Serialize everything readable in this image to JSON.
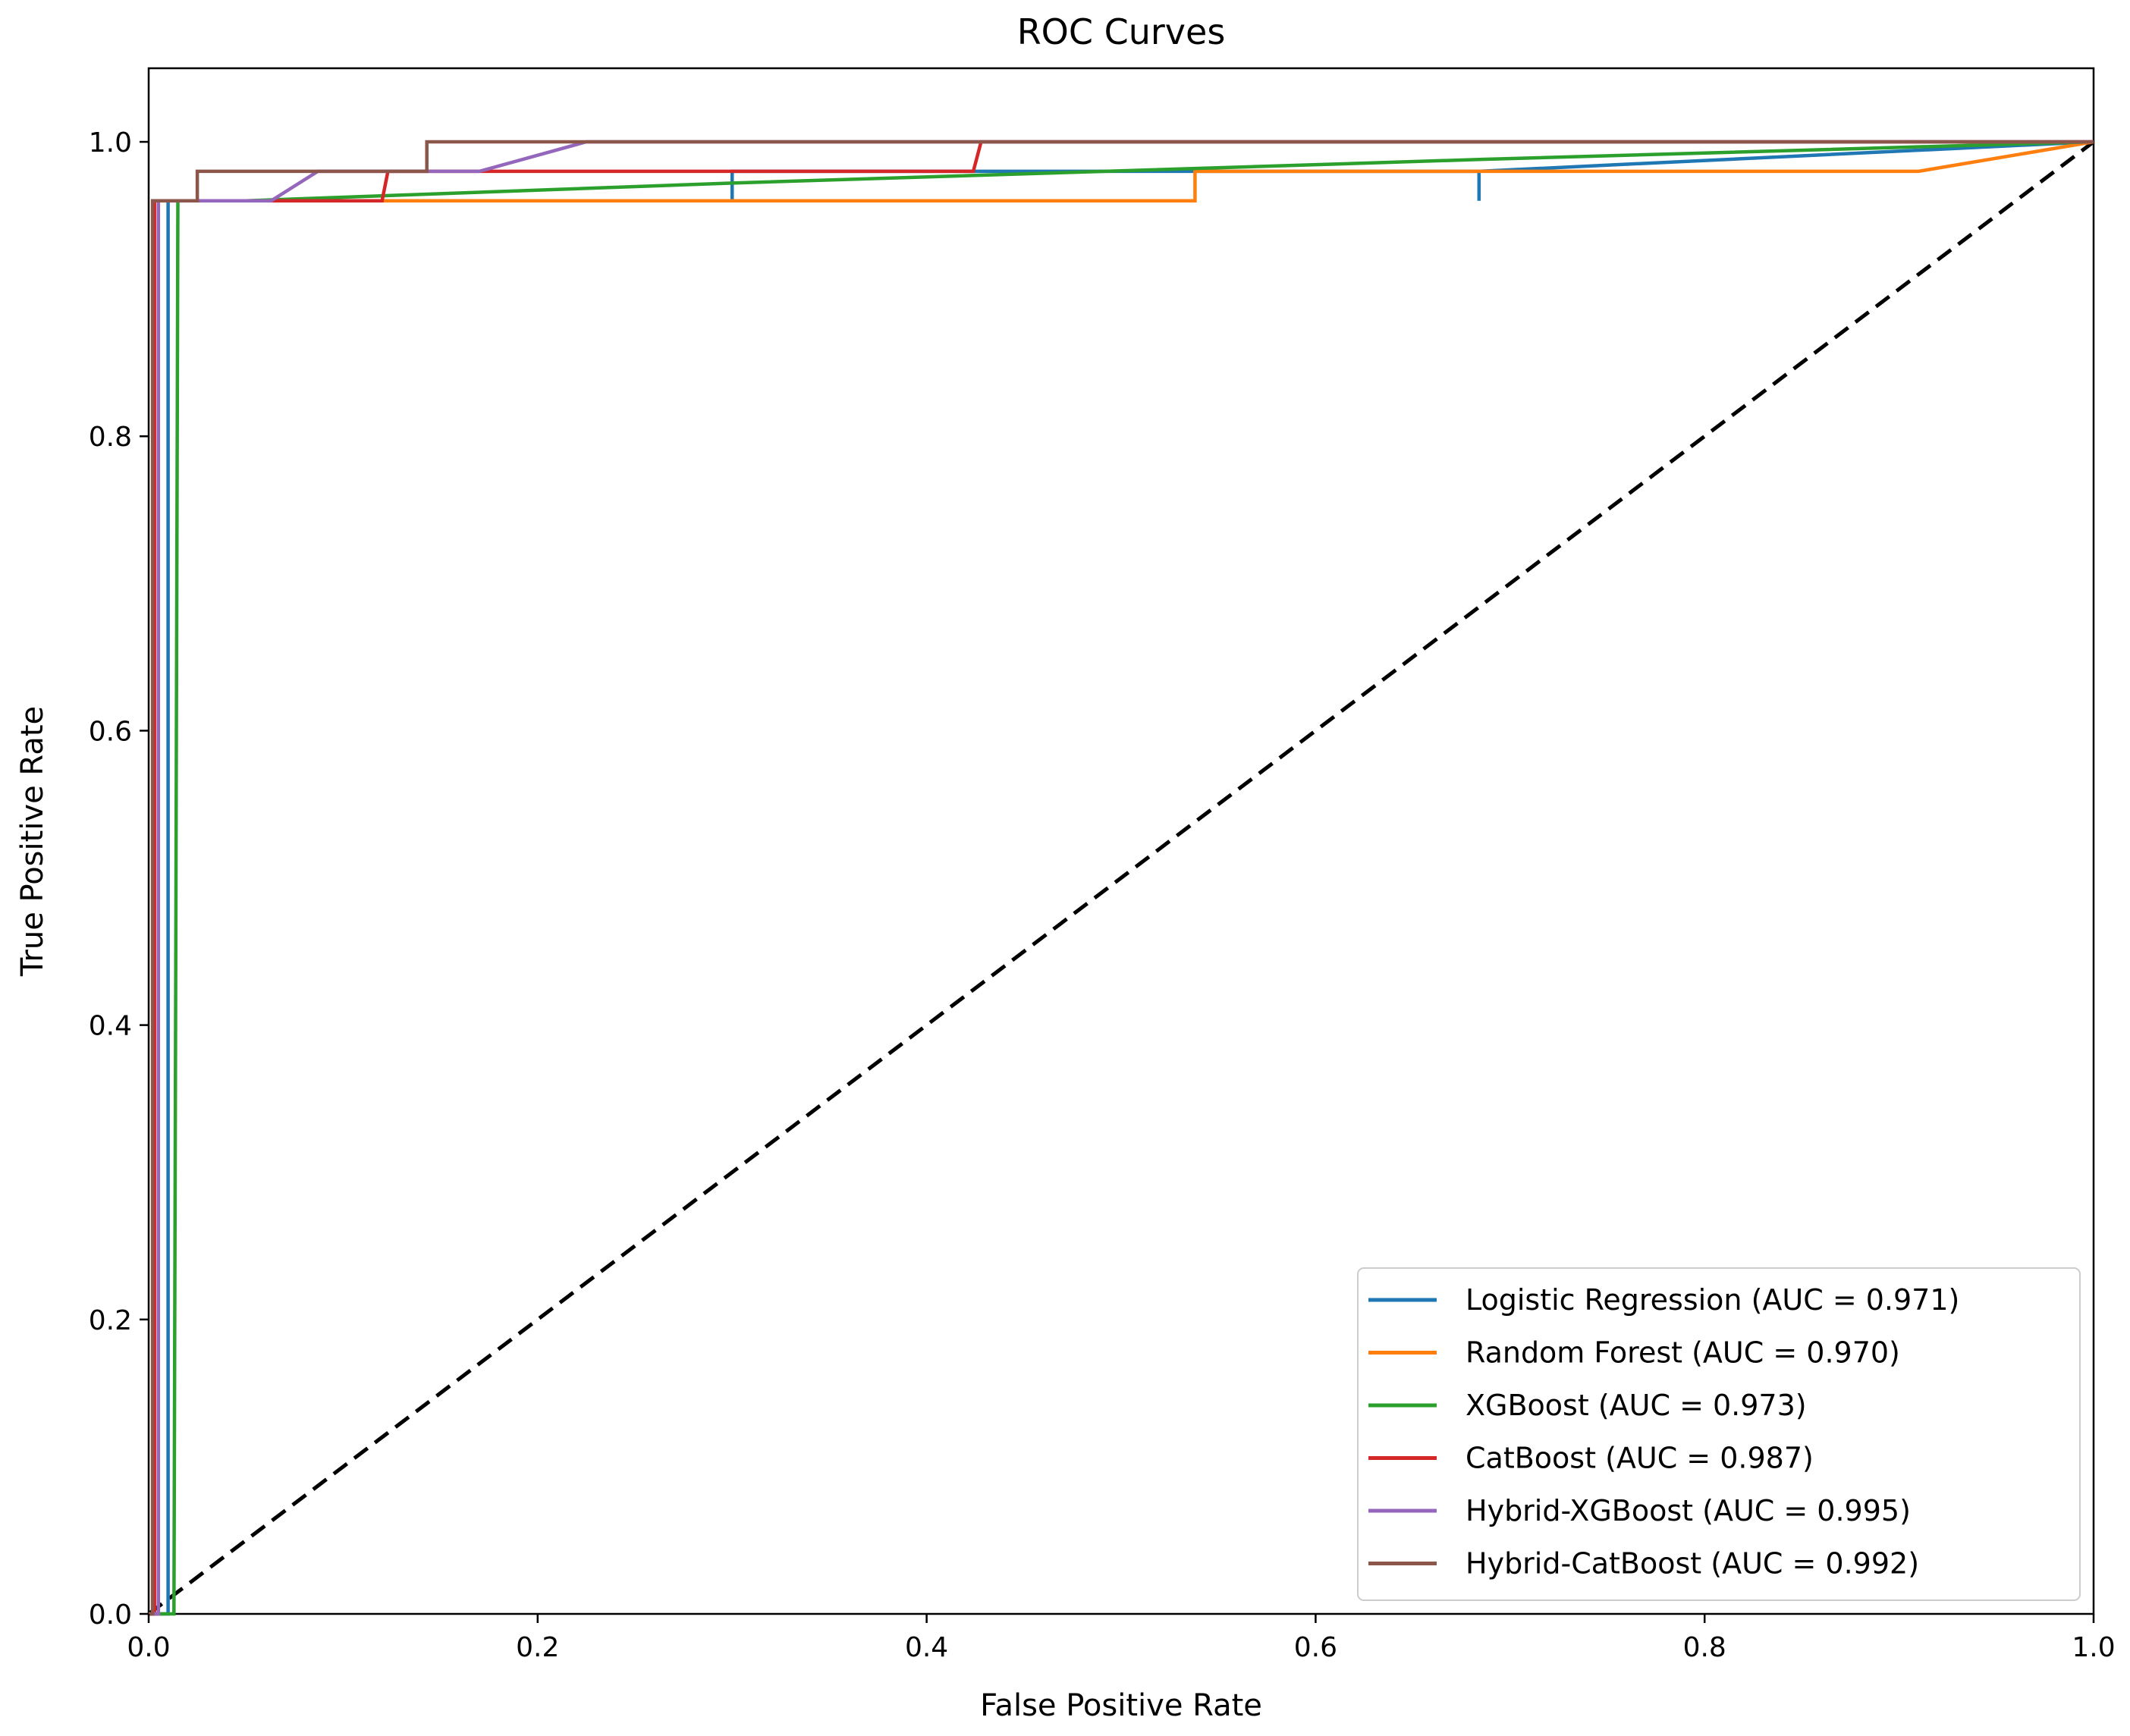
{
  "chart_data": {
    "type": "line",
    "title": "ROC Curves",
    "xlabel": "False Positive Rate",
    "ylabel": "True Positive Rate",
    "xlim": [
      0.0,
      1.0
    ],
    "ylim": [
      0.0,
      1.05
    ],
    "xticks": [
      "0.0",
      "0.2",
      "0.4",
      "0.6",
      "0.8",
      "1.0"
    ],
    "yticks": [
      "0.0",
      "0.2",
      "0.4",
      "0.6",
      "0.8",
      "1.0"
    ],
    "legend_position": "lower-right",
    "series": [
      {
        "name": "Logistic Regression (AUC = 0.971)",
        "color": "#1f77b4",
        "x": [
          0.0,
          0.01,
          0.01,
          0.3,
          0.3,
          0.3,
          0.684,
          0.684,
          0.684,
          1.0
        ],
        "y": [
          0.0,
          0.0,
          0.96,
          0.96,
          0.96,
          0.98,
          0.98,
          0.96,
          0.98,
          1.0
        ]
      },
      {
        "name": "Random Forest (AUC = 0.970)",
        "color": "#ff7f0e",
        "x": [
          0.0,
          0.005,
          0.005,
          0.538,
          0.538,
          0.91,
          1.0
        ],
        "y": [
          0.0,
          0.0,
          0.96,
          0.96,
          0.98,
          0.98,
          1.0
        ]
      },
      {
        "name": "XGBoost (AUC = 0.973)",
        "color": "#2ca02c",
        "x": [
          0.0,
          0.013,
          0.015,
          0.05,
          0.3,
          0.684,
          1.0
        ],
        "y": [
          0.0,
          0.0,
          0.96,
          0.96,
          0.972,
          0.988,
          1.0
        ]
      },
      {
        "name": "CatBoost (AUC = 0.987)",
        "color": "#d62728",
        "x": [
          0.0,
          0.003,
          0.003,
          0.12,
          0.123,
          0.424,
          0.428,
          1.0
        ],
        "y": [
          0.0,
          0.0,
          0.96,
          0.96,
          0.98,
          0.98,
          1.0,
          1.0
        ]
      },
      {
        "name": "Hybrid-XGBoost (AUC = 0.995)",
        "color": "#9467bd",
        "x": [
          0.0,
          0.005,
          0.005,
          0.063,
          0.087,
          0.17,
          0.225,
          1.0
        ],
        "y": [
          0.0,
          0.0,
          0.96,
          0.96,
          0.98,
          0.98,
          1.0,
          1.0
        ]
      },
      {
        "name": "Hybrid-CatBoost (AUC = 0.992)",
        "color": "#8c564b",
        "x": [
          0.0,
          0.002,
          0.002,
          0.025,
          0.025,
          0.143,
          0.143,
          1.0
        ],
        "y": [
          0.0,
          0.0,
          0.96,
          0.96,
          0.98,
          0.98,
          1.0,
          1.0
        ]
      }
    ],
    "reference_line": {
      "x": [
        0.0,
        1.0
      ],
      "y": [
        0.0,
        1.0
      ],
      "color": "#000000",
      "style": "dashed"
    }
  }
}
